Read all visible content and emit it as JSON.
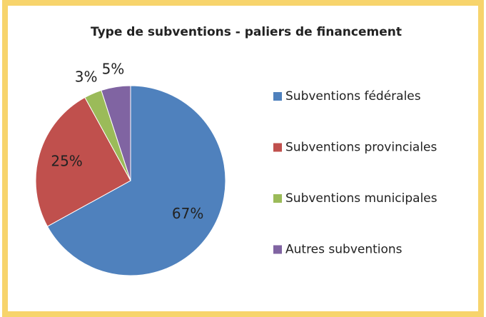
{
  "chart_data": {
    "type": "pie",
    "title": "Type de subventions - paliers de financement",
    "categories": [
      "Subventions fédérales",
      "Subventions provinciales",
      "Subventions municipales",
      "Autres subventions"
    ],
    "values": [
      67,
      25,
      3,
      5
    ],
    "value_labels": [
      "67%",
      "25%",
      "3%",
      "5%"
    ],
    "colors": [
      "#4f81bd",
      "#c0504d",
      "#9bbb59",
      "#8064a2"
    ],
    "legend": "right"
  }
}
